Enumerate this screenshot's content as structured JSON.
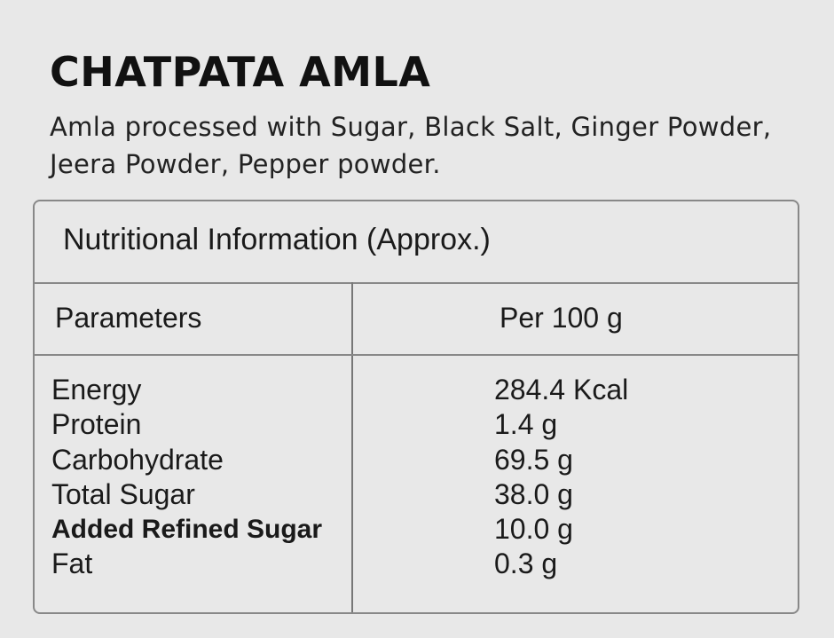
{
  "product": {
    "title": "CHATPATA AMLA",
    "description": "Amla processed with Sugar, Black Salt, Ginger Powder, Jeera Powder, Pepper powder."
  },
  "nutrition_table": {
    "caption": "Nutritional Information (Approx.)",
    "headers": {
      "parameter": "Parameters",
      "value": "Per 100 g"
    },
    "rows": [
      {
        "name": "Energy",
        "value": "284.4 Kcal",
        "bold": false
      },
      {
        "name": "Protein",
        "value": "1.4 g",
        "bold": false
      },
      {
        "name": "Carbohydrate",
        "value": "69.5 g",
        "bold": false
      },
      {
        "name": "Total Sugar",
        "value": "38.0 g",
        "bold": false
      },
      {
        "name": "Added Refined Sugar",
        "value": "10.0 g",
        "bold": true
      },
      {
        "name": "Fat",
        "value": "0.3 g",
        "bold": false
      }
    ]
  },
  "colors": {
    "background": "#e8e8e8",
    "border": "#888888",
    "text": "#141414"
  }
}
